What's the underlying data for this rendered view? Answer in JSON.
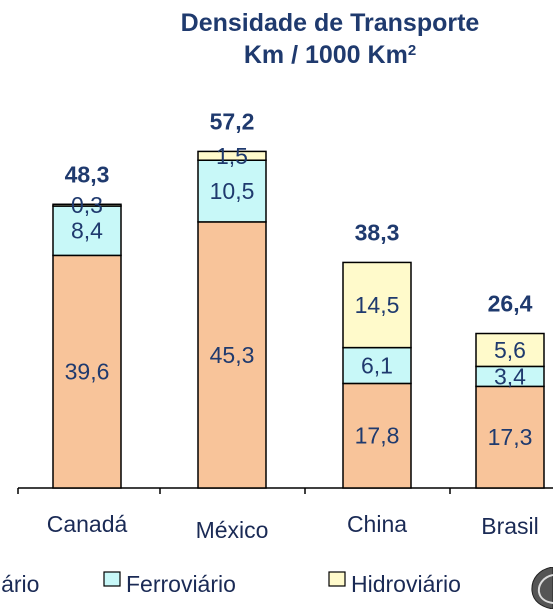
{
  "chart_data": {
    "type": "bar",
    "stacked": true,
    "title_line1": "Densidade de Transporte",
    "title_line2_prefix": "Km / 1000 Km",
    "title_line2_sup": "2",
    "categories": [
      "Canadá",
      "México",
      "China",
      "Brasil"
    ],
    "totals": [
      "48,3",
      "57,2",
      "38,3",
      "26,4"
    ],
    "series": [
      {
        "name": "Rodoviário",
        "values": [
          39.6,
          45.3,
          17.8,
          17.3
        ],
        "labels": [
          "39,6",
          "45,3",
          "17,8",
          "17,3"
        ],
        "color": "#f8c49a"
      },
      {
        "name": "Ferroviário",
        "values": [
          8.4,
          10.5,
          6.1,
          3.4
        ],
        "labels": [
          "8,4",
          "10,5",
          "6,1",
          "3,4"
        ],
        "color": "#c8f8f8"
      },
      {
        "name": "Hidroviário",
        "values": [
          0.3,
          1.5,
          14.5,
          5.6
        ],
        "labels": [
          "0,3",
          "1,5",
          "14,5",
          "5,6"
        ],
        "color": "#fffacb"
      }
    ],
    "legend_labels": [
      "iário",
      "Ferroviário",
      "Hidroviário"
    ],
    "ylim": [
      0,
      57.2
    ],
    "grid": false,
    "legend_position": "bottom"
  },
  "colors": {
    "title": "#1f3a6e",
    "total_label": "#1f3a6e",
    "segment_text": "#1f3a6e",
    "axis": "#000000"
  }
}
